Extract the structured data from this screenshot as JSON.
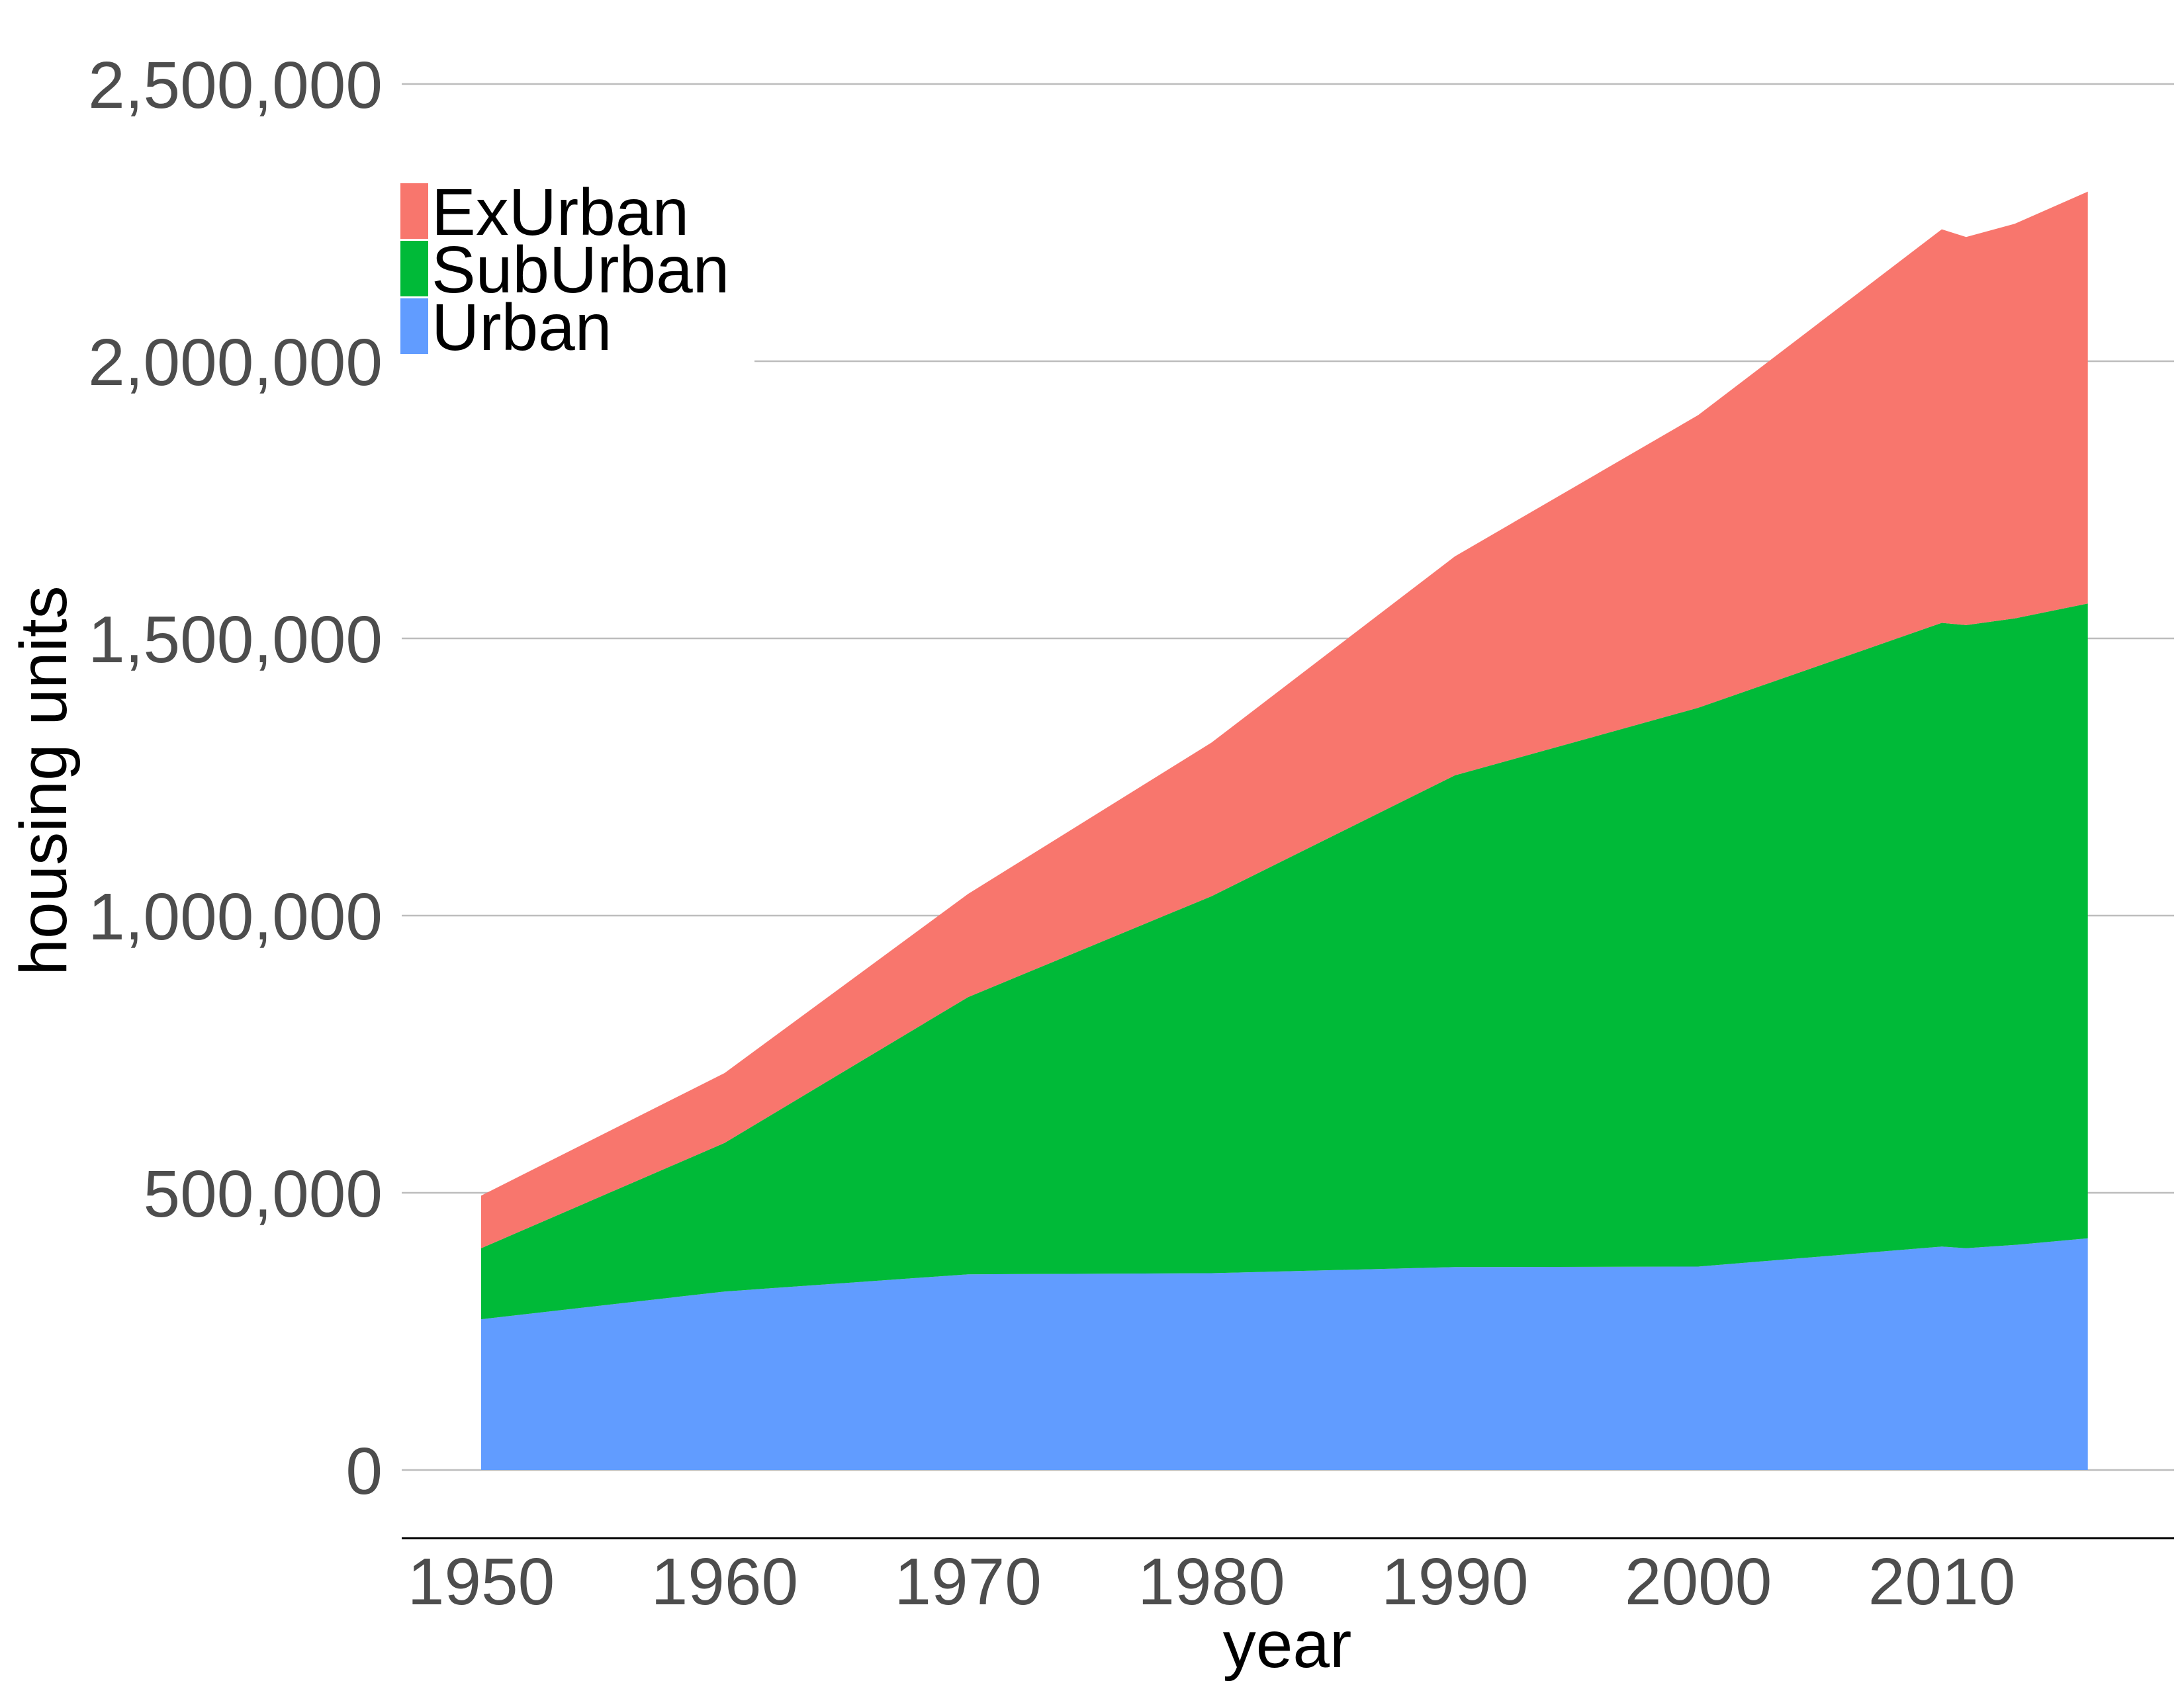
{
  "chart_data": {
    "type": "area",
    "stacked": true,
    "title": "",
    "xlabel": "year",
    "ylabel": "housing units",
    "x": [
      1950,
      1960,
      1970,
      1980,
      1990,
      2000,
      2010,
      2011,
      2013,
      2016
    ],
    "series": [
      {
        "name": "Urban",
        "color": "#619CFF",
        "values": [
          272000,
          322000,
          353000,
          355000,
          366000,
          367000,
          403000,
          400000,
          406000,
          418000
        ]
      },
      {
        "name": "SubUrban",
        "color": "#00BA38",
        "values": [
          128000,
          268000,
          500000,
          680000,
          887000,
          1008000,
          1125000,
          1124000,
          1130000,
          1145000
        ]
      },
      {
        "name": "ExUrban",
        "color": "#F8766D",
        "values": [
          95000,
          126000,
          186000,
          277000,
          395000,
          528000,
          710000,
          700000,
          712000,
          743000
        ]
      }
    ],
    "legend_order": [
      "ExUrban",
      "SubUrban",
      "Urban"
    ],
    "legend_position": "top-left",
    "ylim": [
      0,
      2500000
    ],
    "yticks": [
      0,
      500000,
      1000000,
      1500000,
      2000000,
      2500000
    ],
    "ytick_labels": [
      "0",
      "500,000",
      "1,000,000",
      "1,500,000",
      "2,000,000",
      "2,500,000"
    ],
    "xticks": [
      1950,
      1960,
      1970,
      1980,
      1990,
      2000,
      2010
    ],
    "xtick_labels": [
      "1950",
      "1960",
      "1970",
      "1980",
      "1990",
      "2000",
      "2010"
    ],
    "grid": "horizontal"
  }
}
